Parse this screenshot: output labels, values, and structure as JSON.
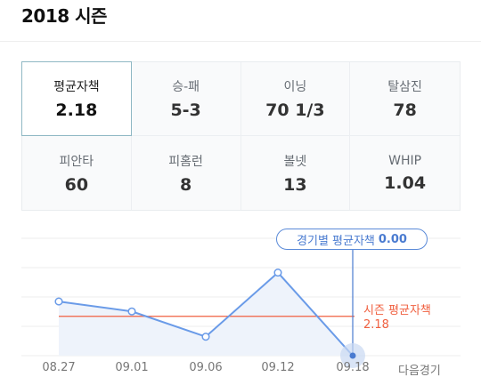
{
  "header": {
    "title": "2018 시즌"
  },
  "stats": [
    {
      "label": "평균자책",
      "value": "2.18",
      "selected": true
    },
    {
      "label": "승-패",
      "value": "5-3"
    },
    {
      "label": "이닝",
      "value": "70 1/3"
    },
    {
      "label": "탈삼진",
      "value": "78"
    },
    {
      "label": "피안타",
      "value": "60"
    },
    {
      "label": "피홈런",
      "value": "8"
    },
    {
      "label": "볼넷",
      "value": "13"
    },
    {
      "label": "WHIP",
      "value": "1.04"
    }
  ],
  "chart_data": {
    "type": "line",
    "x": [
      "08.27",
      "09.01",
      "09.06",
      "09.12",
      "09.18"
    ],
    "series": [
      {
        "values": [
          3.0,
          2.45,
          1.05,
          4.6,
          0.0
        ]
      }
    ],
    "reference_line": {
      "label": "시즌 평균자책",
      "value": "2.18",
      "y": 2.18
    },
    "tooltip": {
      "label": "경기별 평균자책",
      "value": "0.00",
      "index": 4
    },
    "next_label": "다음경기",
    "ylim": [
      0,
      6.5
    ],
    "grid": true,
    "colors": {
      "line": "#6a9be8",
      "area": "#eef3fb",
      "reference": "#f06040",
      "highlight": "#4a7bd0"
    }
  }
}
